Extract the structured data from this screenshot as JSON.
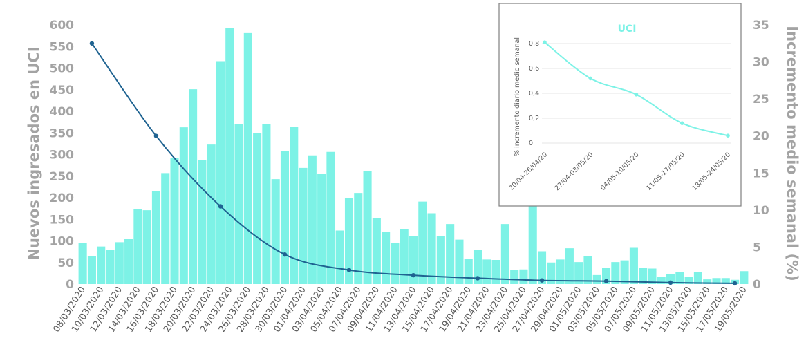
{
  "chart_data": [
    {
      "type": "bar",
      "title": "",
      "ylabel": "Nuevos ingresados en UCI",
      "y2label": "Incremento medio semanal (%)",
      "ylim": [
        0,
        600
      ],
      "y2lim": [
        0,
        35
      ],
      "y_ticks": [
        "0",
        "50",
        "100",
        "150",
        "200",
        "250",
        "300",
        "350",
        "400",
        "450",
        "500",
        "550",
        "600"
      ],
      "y2_ticks": [
        "0",
        "5",
        "10",
        "15",
        "20",
        "25",
        "30",
        "35"
      ],
      "colors": {
        "bars": "#7df2e6",
        "line": "#1f6391",
        "axis_text": "#a3a3a3"
      },
      "grid": false,
      "categories": [
        "08/03/2020",
        "09/03/2020",
        "10/03/2020",
        "11/03/2020",
        "12/03/2020",
        "13/03/2020",
        "14/03/2020",
        "15/03/2020",
        "16/03/2020",
        "17/03/2020",
        "18/03/2020",
        "19/03/2020",
        "20/03/2020",
        "21/03/2020",
        "22/03/2020",
        "23/03/2020",
        "24/03/2020",
        "25/03/2020",
        "26/03/2020",
        "27/03/2020",
        "28/03/2020",
        "29/03/2020",
        "30/03/2020",
        "31/03/2020",
        "01/04/2020",
        "02/04/2020",
        "03/04/2020",
        "04/04/2020",
        "05/04/2020",
        "06/04/2020",
        "07/04/2020",
        "08/04/2020",
        "09/04/2020",
        "10/04/2020",
        "11/04/2020",
        "12/04/2020",
        "13/04/2020",
        "14/04/2020",
        "15/04/2020",
        "16/04/2020",
        "17/04/2020",
        "18/04/2020",
        "19/04/2020",
        "20/04/2020",
        "21/04/2020",
        "22/04/2020",
        "23/04/2020",
        "24/04/2020",
        "25/04/2020",
        "26/04/2020",
        "27/04/2020",
        "28/04/2020",
        "29/04/2020",
        "30/04/2020",
        "01/05/2020",
        "02/05/2020",
        "03/05/2020",
        "04/05/2020",
        "05/05/2020",
        "06/05/2020",
        "07/05/2020",
        "08/05/2020",
        "09/05/2020",
        "10/05/2020",
        "11/05/2020",
        "12/05/2020",
        "13/05/2020",
        "14/05/2020",
        "15/05/2020",
        "16/05/2020",
        "17/05/2020",
        "18/05/2020",
        "19/05/2020"
      ],
      "x_tick_labels": [
        "08/03/2020",
        "10/03/2020",
        "12/03/2020",
        "14/03/2020",
        "16/03/2020",
        "18/03/2020",
        "20/03/2020",
        "22/03/2020",
        "24/03/2020",
        "26/03/2020",
        "28/03/2020",
        "30/03/2020",
        "01/04/2020",
        "03/04/2020",
        "05/04/2020",
        "07/04/2020",
        "09/04/2020",
        "11/04/2020",
        "13/04/2020",
        "15/04/2020",
        "17/04/2020",
        "19/04/2020",
        "21/04/2020",
        "23/04/2020",
        "25/04/2020",
        "27/04/2020",
        "29/04/2020",
        "01/05/2020",
        "03/05/2020",
        "05/05/2020",
        "07/05/2020",
        "09/05/2020",
        "11/05/2020",
        "13/05/2020",
        "15/05/2020",
        "17/05/2020",
        "19/05/2020"
      ],
      "values": [
        95,
        65,
        87,
        80,
        97,
        104,
        173,
        171,
        215,
        257,
        292,
        363,
        451,
        287,
        323,
        516,
        592,
        371,
        581,
        349,
        370,
        243,
        308,
        364,
        269,
        298,
        255,
        306,
        124,
        200,
        211,
        262,
        153,
        120,
        96,
        127,
        112,
        191,
        164,
        111,
        139,
        103,
        58,
        79,
        57,
        56,
        139,
        33,
        34,
        183,
        76,
        50,
        57,
        83,
        51,
        65,
        21,
        37,
        51,
        55,
        84,
        37,
        36,
        17,
        24,
        28,
        17,
        28,
        11,
        14,
        14,
        10,
        30
      ],
      "series": [
        {
          "name": "Incremento medio semanal (%)",
          "x": [
            "09/03/2020",
            "16/03/2020",
            "23/03/2020",
            "30/03/2020",
            "06/04/2020",
            "13/04/2020",
            "20/04/2020",
            "27/04/2020",
            "04/05/2020",
            "11/05/2020",
            "18/05/2020"
          ],
          "values": [
            32.5,
            20,
            10.5,
            4,
            1.9,
            1.2,
            0.8,
            0.5,
            0.4,
            0.2,
            0.1
          ]
        }
      ]
    },
    {
      "type": "line",
      "title": "UCI",
      "ylabel": "% incremento diario medio semanal",
      "ylim": [
        0,
        0.8
      ],
      "y_ticks": [
        "0",
        "0,2",
        "0,4",
        "0,6",
        "0,8"
      ],
      "categories": [
        "20/04-26/04/20",
        "27/04-03/05/20",
        "04/05-10/05/20",
        "11/05-17/05/20",
        "18/05-24/05/20"
      ],
      "values": [
        0.81,
        0.52,
        0.39,
        0.16,
        0.06
      ],
      "colors": {
        "line": "#7df2e6",
        "title": "#7df2e6",
        "frame": "#7f7f7f"
      },
      "grid": true
    }
  ]
}
